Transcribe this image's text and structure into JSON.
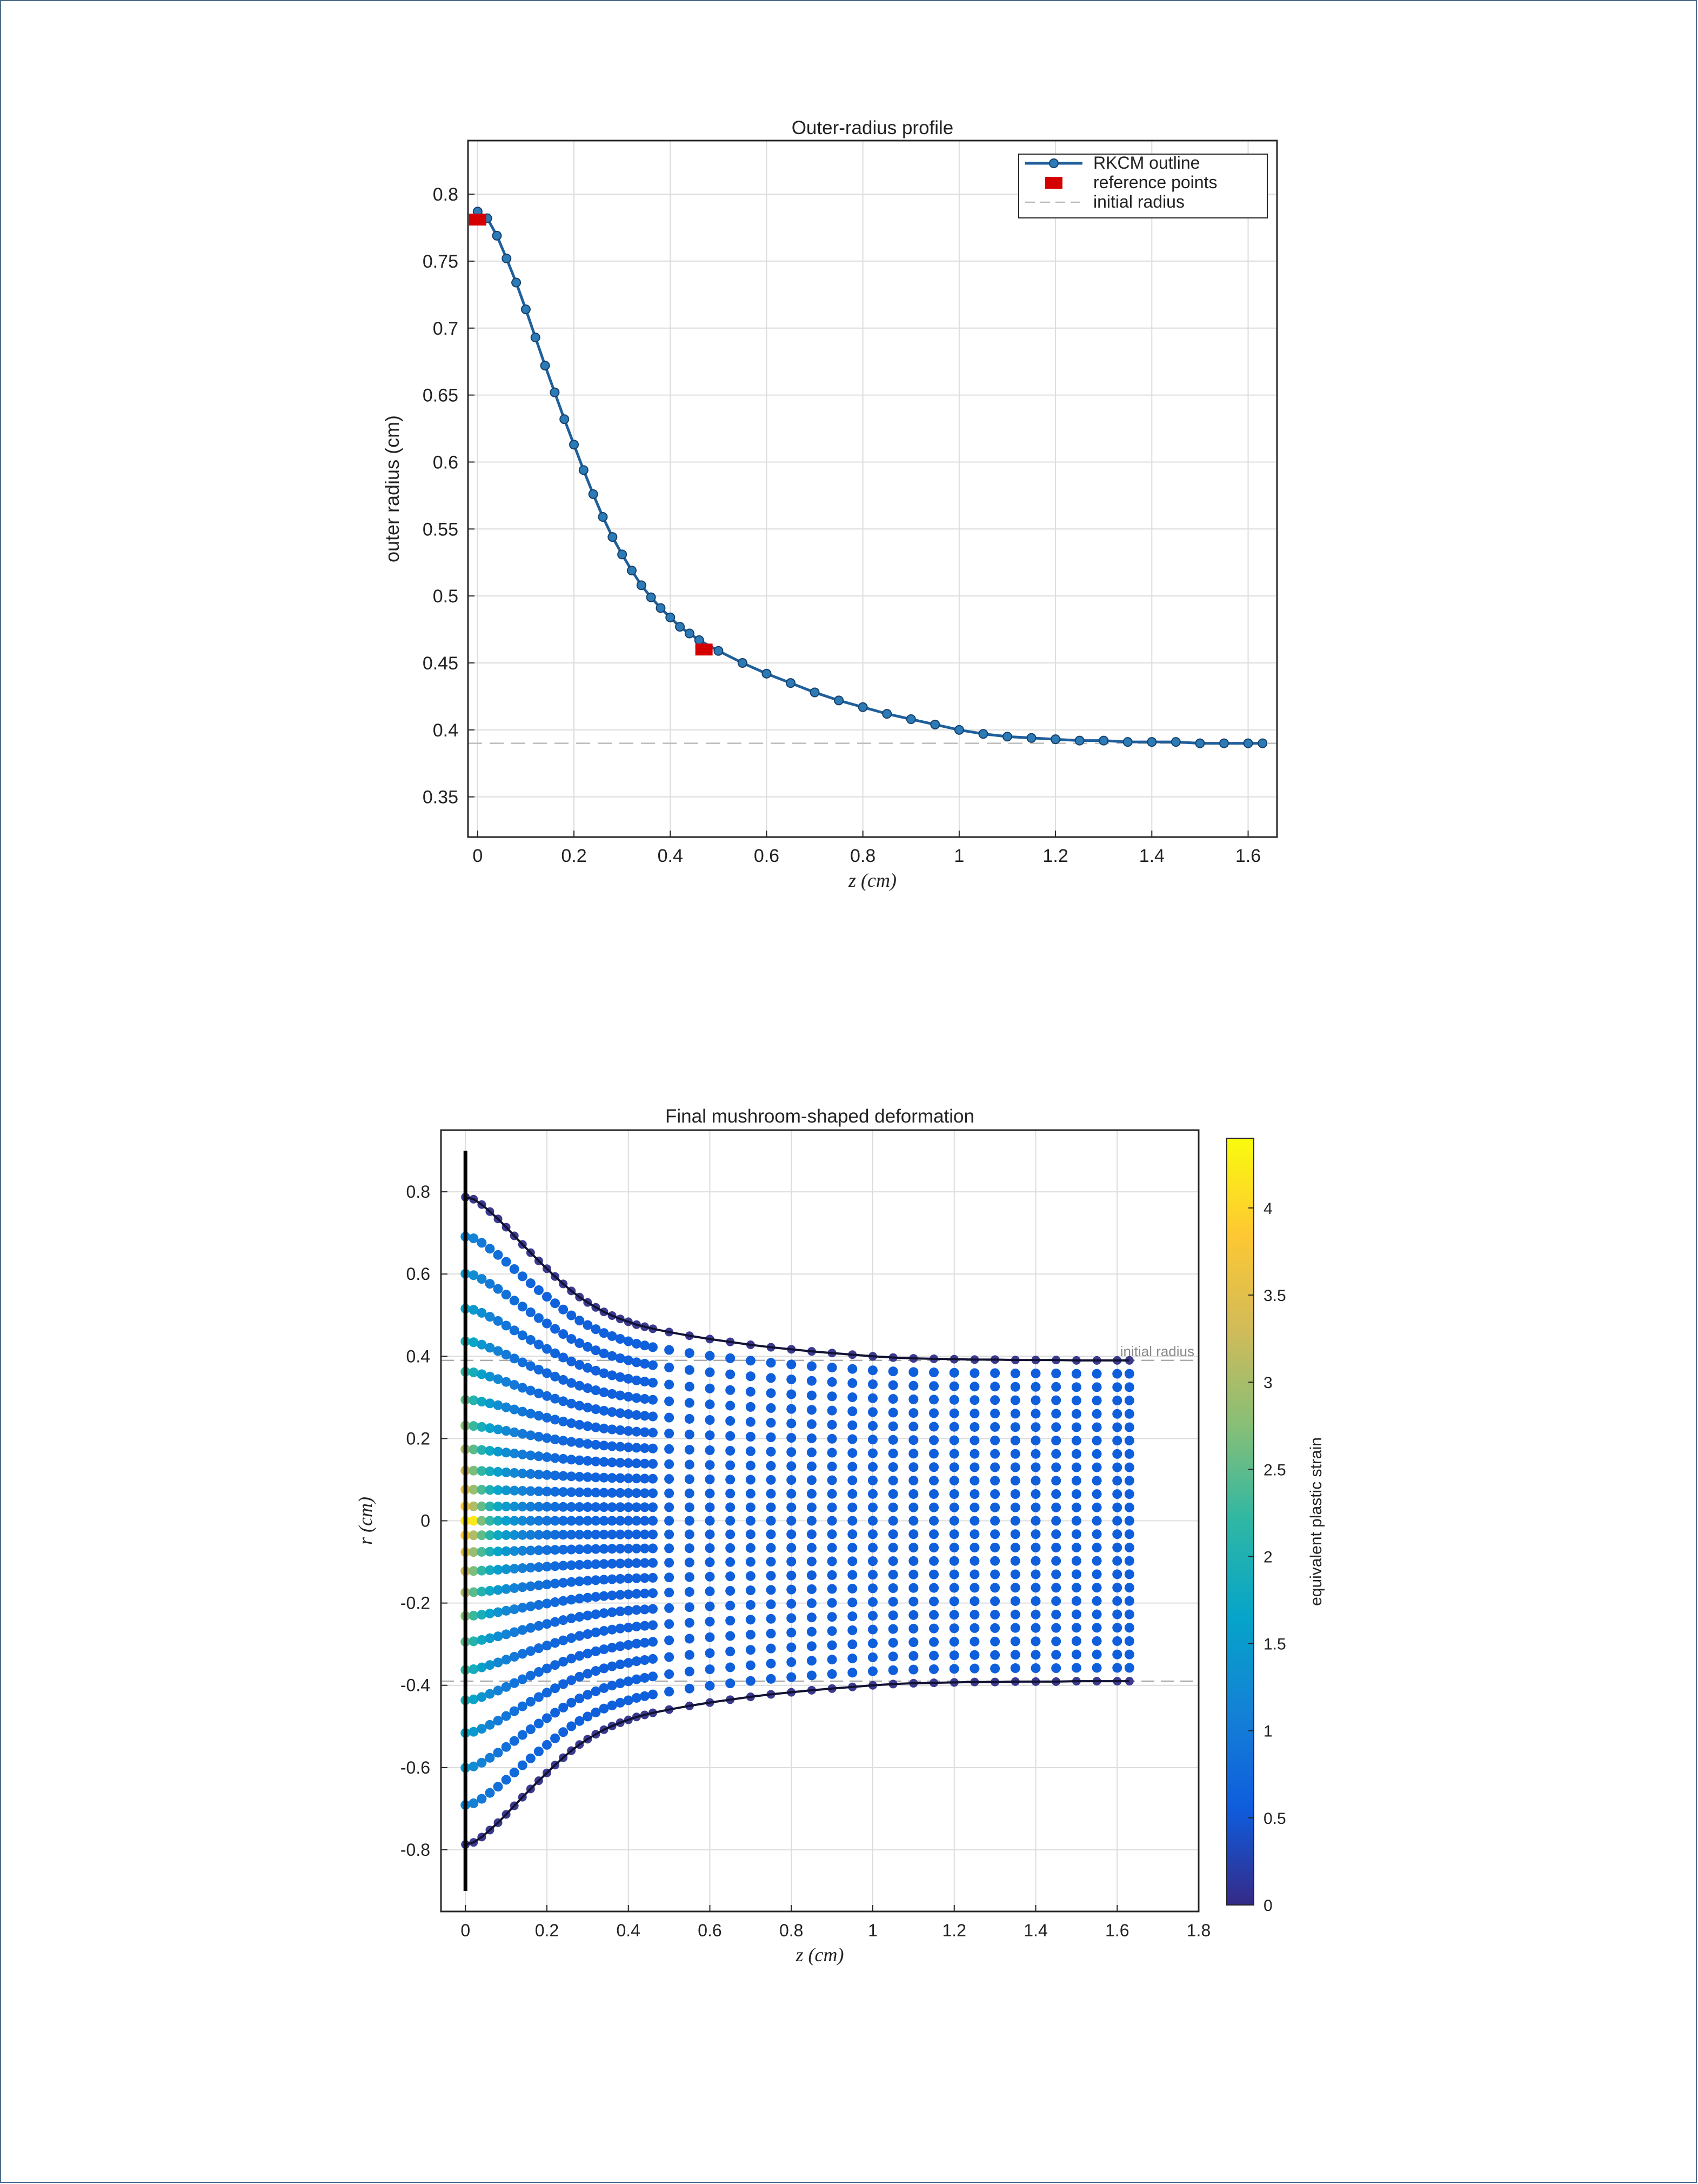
{
  "chart_data": [
    {
      "type": "line",
      "title": "Outer-radius profile",
      "xlabel": "z (cm)",
      "ylabel": "outer radius (cm)",
      "xlim": [
        -0.02,
        1.66
      ],
      "ylim": [
        0.32,
        0.84
      ],
      "xticks": [
        "0",
        "0.2",
        "0.4",
        "0.6",
        "0.8",
        "1",
        "1.2",
        "1.4",
        "1.6"
      ],
      "yticks": [
        "0.35",
        "0.4",
        "0.45",
        "0.5",
        "0.55",
        "0.6",
        "0.65",
        "0.7",
        "0.75",
        "0.8"
      ],
      "grid": true,
      "legend_position": "top-right",
      "legend": [
        "RKCM outline",
        "reference points",
        "initial radius"
      ],
      "colors": {
        "outline": "#1f5f9c",
        "reference": "#d40000",
        "initial": "#bbbbbb"
      },
      "series": [
        {
          "name": "RKCM outline",
          "x": [
            0.0,
            0.02,
            0.04,
            0.06,
            0.08,
            0.1,
            0.12,
            0.14,
            0.16,
            0.18,
            0.2,
            0.22,
            0.24,
            0.26,
            0.28,
            0.3,
            0.32,
            0.34,
            0.36,
            0.38,
            0.4,
            0.42,
            0.44,
            0.46,
            0.5,
            0.55,
            0.6,
            0.65,
            0.7,
            0.75,
            0.8,
            0.85,
            0.9,
            0.95,
            1.0,
            1.05,
            1.1,
            1.15,
            1.2,
            1.25,
            1.3,
            1.35,
            1.4,
            1.45,
            1.5,
            1.55,
            1.6,
            1.63
          ],
          "y": [
            0.787,
            0.782,
            0.769,
            0.752,
            0.734,
            0.714,
            0.693,
            0.672,
            0.652,
            0.632,
            0.613,
            0.594,
            0.576,
            0.559,
            0.544,
            0.531,
            0.519,
            0.508,
            0.499,
            0.491,
            0.484,
            0.477,
            0.472,
            0.467,
            0.459,
            0.45,
            0.442,
            0.435,
            0.428,
            0.422,
            0.417,
            0.412,
            0.408,
            0.404,
            0.4,
            0.397,
            0.395,
            0.394,
            0.393,
            0.392,
            0.392,
            0.391,
            0.391,
            0.391,
            0.39,
            0.39,
            0.39,
            0.39
          ]
        },
        {
          "name": "reference points",
          "x": [
            0.0,
            0.47
          ],
          "y": [
            0.781,
            0.46
          ]
        },
        {
          "name": "initial radius",
          "y": 0.39
        }
      ]
    },
    {
      "type": "scatter",
      "title": "Final mushroom-shaped deformation",
      "xlabel": "z (cm)",
      "ylabel": "r (cm)",
      "xlim": [
        -0.06,
        1.8
      ],
      "ylim": [
        -0.95,
        0.95
      ],
      "xticks": [
        "0",
        "0.2",
        "0.4",
        "0.6",
        "0.8",
        "1",
        "1.2",
        "1.4",
        "1.6",
        "1.8"
      ],
      "yticks": [
        "-0.8",
        "-0.6",
        "-0.4",
        "-0.2",
        "0",
        "0.2",
        "0.4",
        "0.6",
        "0.8"
      ],
      "grid": true,
      "annotation": "initial radius",
      "initial_radius": 0.39,
      "wall_x": 0.0,
      "colorbar": {
        "label": "equivalent plastic strain",
        "range": [
          0,
          4.4
        ],
        "ticks": [
          "0",
          "0.5",
          "1",
          "1.5",
          "2",
          "2.5",
          "3",
          "3.5",
          "4"
        ],
        "colormap": "parula"
      },
      "grid_points": {
        "z_values": [
          0.0,
          0.02,
          0.04,
          0.06,
          0.08,
          0.1,
          0.12,
          0.14,
          0.16,
          0.18,
          0.2,
          0.22,
          0.24,
          0.26,
          0.28,
          0.3,
          0.32,
          0.34,
          0.36,
          0.38,
          0.4,
          0.42,
          0.44,
          0.46,
          0.5,
          0.55,
          0.6,
          0.65,
          0.7,
          0.75,
          0.8,
          0.85,
          0.9,
          0.95,
          1.0,
          1.05,
          1.1,
          1.15,
          1.2,
          1.25,
          1.3,
          1.35,
          1.4,
          1.45,
          1.5,
          1.55,
          1.6,
          1.63
        ],
        "outer_radius": [
          0.787,
          0.782,
          0.769,
          0.752,
          0.734,
          0.714,
          0.693,
          0.672,
          0.652,
          0.632,
          0.613,
          0.594,
          0.576,
          0.559,
          0.544,
          0.531,
          0.519,
          0.508,
          0.499,
          0.491,
          0.484,
          0.477,
          0.472,
          0.467,
          0.459,
          0.45,
          0.442,
          0.435,
          0.428,
          0.422,
          0.417,
          0.412,
          0.408,
          0.404,
          0.4,
          0.397,
          0.395,
          0.394,
          0.393,
          0.392,
          0.392,
          0.391,
          0.391,
          0.391,
          0.39,
          0.39,
          0.39,
          0.39
        ],
        "layers_per_side": 12,
        "strain_max_center": 4.2,
        "strain_far_field": 0.6
      }
    }
  ]
}
